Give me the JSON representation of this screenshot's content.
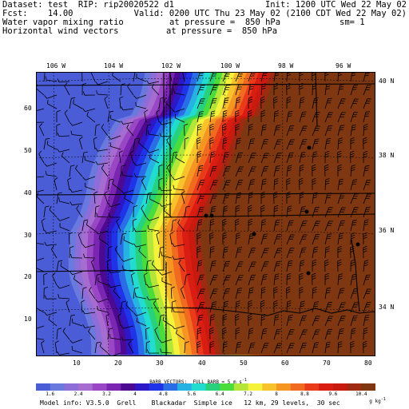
{
  "header": {
    "line1_left": "Dataset: test  RIP: rip20020522 d1",
    "line1_right": "Init: 1200 UTC Wed 22 May 02",
    "line2_left": "Fcst:    14.00",
    "line2_right": "Valid: 0200 UTC Thu 23 May 02 (2100 CDT Wed 22 May 02)",
    "line3_left": "Water vapor mixing ratio",
    "line3_mid": "at pressure =  850 hPa",
    "line3_right": "sm= 1",
    "line4_left": "Horizontal wind vectors",
    "line4_mid": "at pressure =  850 hPa"
  },
  "map": {
    "top_lon_labels": [
      "106 W",
      "104 W",
      "102 W",
      "100 W",
      "98 W",
      "96 W"
    ],
    "right_lat_labels": [
      "40 N",
      "38 N",
      "36 N",
      "34 N"
    ],
    "left_grid_labels": [
      "60",
      "50",
      "40",
      "30",
      "20",
      "10"
    ],
    "bottom_grid_labels": [
      "10",
      "20",
      "30",
      "40",
      "50",
      "60",
      "70",
      "80"
    ],
    "station_markers_count": 7
  },
  "legend": {
    "barb_label": "BARB VECTORS:  FULL BARB = 5 m s",
    "barb_sup": "-1",
    "colorbar_values": [
      "1.6",
      "2.4",
      "3.2",
      "4",
      "4.8",
      "5.6",
      "6.4",
      "7.2",
      "8",
      "8.8",
      "9.6",
      "10.4"
    ],
    "colorbar_unit": "g kg",
    "colorbar_unit_sup": "-1",
    "colors": [
      "#4a5cd6",
      "#6a79dd",
      "#8d6ed8",
      "#a66cd0",
      "#9a47c6",
      "#7b25b3",
      "#4b0a91",
      "#2e17c7",
      "#1f33e8",
      "#2a6de6",
      "#26b3e3",
      "#22dccf",
      "#28d27c",
      "#49dc3b",
      "#b4e63a",
      "#f4f23a",
      "#f7c22b",
      "#f59622",
      "#f06a20",
      "#e93a1a",
      "#d91d12",
      "#c91a10",
      "#9f2a12",
      "#7e3710"
    ],
    "model_info": "Model info: V3.5.0  Grell    Blackadar  Simple ice   12 km, 29 levels,  30 sec"
  }
}
